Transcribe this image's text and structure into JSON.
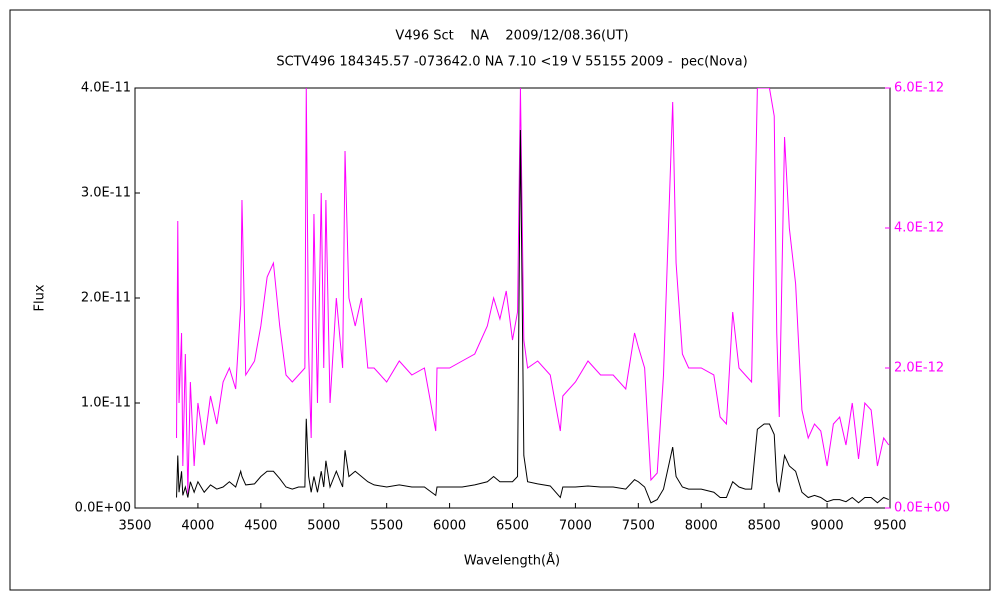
{
  "chart_data": {
    "type": "line",
    "title": "V496 Sct    NA    2009/12/08.36(UT)",
    "subtitle": "SCTV496 184345.57 -073642.0 NA 7.10 <19 V 55155 2009 -  pec(Nova)",
    "xlabel": "Wavelength(Å)",
    "ylabel": "Flux",
    "xlim": [
      3500,
      9500
    ],
    "xticks": [
      3500,
      4000,
      4500,
      5000,
      5500,
      6000,
      6500,
      7000,
      7500,
      8000,
      8500,
      9000,
      9500
    ],
    "ylim": [
      0,
      4e-11
    ],
    "yticks": [
      {
        "value": 0,
        "label": "0.0E+00"
      },
      {
        "value": 1e-11,
        "label": "1.0E-11"
      },
      {
        "value": 2e-11,
        "label": "2.0E-11"
      },
      {
        "value": 3e-11,
        "label": "3.0E-11"
      },
      {
        "value": 4e-11,
        "label": "4.0E-11"
      }
    ],
    "y2lim": [
      0,
      6e-12
    ],
    "y2ticks": [
      {
        "value": 0,
        "label": "0.0E+00"
      },
      {
        "value": 2e-12,
        "label": "2.0E-12"
      },
      {
        "value": 4e-12,
        "label": "4.0E-12"
      },
      {
        "value": 6e-12,
        "label": "6.0E-12"
      }
    ],
    "x": [
      3830,
      3840,
      3850,
      3870,
      3880,
      3900,
      3920,
      3940,
      3970,
      4000,
      4050,
      4100,
      4150,
      4200,
      4250,
      4300,
      4340,
      4350,
      4380,
      4450,
      4500,
      4550,
      4600,
      4650,
      4700,
      4750,
      4800,
      4850,
      4861,
      4880,
      4900,
      4922,
      4950,
      4980,
      5000,
      5017,
      5050,
      5100,
      5150,
      5169,
      5200,
      5250,
      5300,
      5350,
      5400,
      5500,
      5600,
      5700,
      5800,
      5890,
      5900,
      6000,
      6100,
      6200,
      6300,
      6350,
      6400,
      6450,
      6500,
      6540,
      6563,
      6590,
      6620,
      6700,
      6800,
      6880,
      6900,
      7000,
      7100,
      7200,
      7300,
      7400,
      7470,
      7500,
      7550,
      7600,
      7650,
      7700,
      7773,
      7800,
      7850,
      7900,
      7950,
      8000,
      8100,
      8150,
      8200,
      8250,
      8300,
      8350,
      8400,
      8446,
      8500,
      8542,
      8580,
      8600,
      8620,
      8662,
      8700,
      8750,
      8800,
      8850,
      8900,
      8950,
      9000,
      9050,
      9100,
      9150,
      9200,
      9250,
      9300,
      9350,
      9400,
      9450,
      9490
    ],
    "series": [
      {
        "color": "#000000",
        "values": [
          1e-12,
          5e-12,
          1.5e-12,
          3.5e-12,
          1.2e-12,
          2e-12,
          1e-12,
          2.5e-12,
          1.5e-12,
          2.5e-12,
          1.5e-12,
          2.2e-12,
          1.8e-12,
          2e-12,
          2.5e-12,
          2e-12,
          3.5e-12,
          3e-12,
          2.2e-12,
          2.3e-12,
          3e-12,
          3.5e-12,
          3.5e-12,
          2.8e-12,
          2e-12,
          1.8e-12,
          2e-12,
          2e-12,
          8.5e-12,
          3e-12,
          1.5e-12,
          3e-12,
          1.5e-12,
          3.5e-12,
          2e-12,
          4.5e-12,
          2e-12,
          3.5e-12,
          2e-12,
          5.5e-12,
          3e-12,
          3.5e-12,
          3e-12,
          2.5e-12,
          2.2e-12,
          2e-12,
          2.2e-12,
          2e-12,
          2e-12,
          1.2e-12,
          2e-12,
          2e-12,
          2e-12,
          2.2e-12,
          2.5e-12,
          3e-12,
          2.5e-12,
          2.5e-12,
          2.5e-12,
          3e-12,
          3.6e-11,
          5e-12,
          2.5e-12,
          2.3e-12,
          2.1e-12,
          1e-12,
          2e-12,
          2e-12,
          2.1e-12,
          2e-12,
          2e-12,
          1.8e-12,
          2.7e-12,
          2.5e-12,
          2e-12,
          5e-13,
          8e-13,
          1.8e-12,
          5.8e-12,
          3e-12,
          2e-12,
          1.8e-12,
          1.8e-12,
          1.8e-12,
          1.5e-12,
          1e-12,
          1e-12,
          2.5e-12,
          2e-12,
          1.8e-12,
          1.8e-12,
          7.5e-12,
          8e-12,
          8e-12,
          7e-12,
          2.5e-12,
          1.5e-12,
          5e-12,
          4e-12,
          3.5e-12,
          1.5e-12,
          1e-12,
          1.2e-12,
          1e-12,
          6e-13,
          8e-13,
          8e-13,
          6e-13,
          1e-12,
          5e-13,
          1e-12,
          1e-12,
          5e-13,
          1e-12,
          8e-13
        ]
      },
      {
        "color": "#ff00ff",
        "axis": "y2",
        "values": [
          1e-12,
          4.1e-12,
          1.5e-12,
          2.5e-12,
          6e-13,
          2.2e-12,
          2e-13,
          1.8e-12,
          6e-13,
          1.5e-12,
          9e-13,
          1.6e-12,
          1.2e-12,
          1.8e-12,
          2e-12,
          1.7e-12,
          2.9e-12,
          4.4e-12,
          1.9e-12,
          2.1e-12,
          2.6e-12,
          3.3e-12,
          3.5e-12,
          2.6e-12,
          1.9e-12,
          1.8e-12,
          1.9e-12,
          2e-12,
          6e-12,
          2.2e-12,
          1e-12,
          4.2e-12,
          1.5e-12,
          4.5e-12,
          2e-12,
          4.4e-12,
          1.5e-12,
          3e-12,
          2e-12,
          5.1e-12,
          3e-12,
          2.6e-12,
          3e-12,
          2e-12,
          2e-12,
          1.8e-12,
          2.1e-12,
          1.9e-12,
          2e-12,
          1.1e-12,
          2e-12,
          2e-12,
          2.1e-12,
          2.2e-12,
          2.6e-12,
          3e-12,
          2.7e-12,
          3.1e-12,
          2.4e-12,
          2.8e-12,
          6e-12,
          2.4e-12,
          2e-12,
          2.1e-12,
          1.9e-12,
          1.1e-12,
          1.6e-12,
          1.8e-12,
          2.1e-12,
          1.9e-12,
          1.9e-12,
          1.7e-12,
          2.5e-12,
          2.3e-12,
          2e-12,
          4e-13,
          5e-13,
          1.9e-12,
          5.8e-12,
          3.5e-12,
          2.2e-12,
          2e-12,
          2e-12,
          2e-12,
          1.9e-12,
          1.3e-12,
          1.2e-12,
          2.8e-12,
          2e-12,
          1.9e-12,
          1.8e-12,
          6e-12,
          6e-12,
          6e-12,
          5.6e-12,
          2.5e-12,
          1.3e-12,
          5.3e-12,
          4e-12,
          3.2e-12,
          1.4e-12,
          1e-12,
          1.2e-12,
          1.1e-12,
          6e-13,
          1.2e-12,
          1.3e-12,
          9e-13,
          1.5e-12,
          7e-13,
          1.5e-12,
          1.4e-12,
          6e-13,
          1e-12,
          9e-13
        ]
      }
    ]
  }
}
